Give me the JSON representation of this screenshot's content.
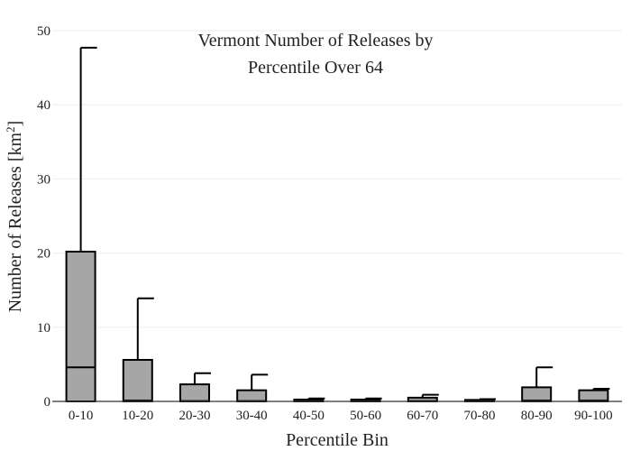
{
  "chart_data": {
    "type": "bar",
    "title_lines": [
      "Vermont Number of Releases by",
      "Percentile Over 64"
    ],
    "xlabel": "Percentile Bin",
    "ylabel_main": "Number of Releases  [km",
    "ylabel_sup": "2",
    "ylabel_end": "]",
    "ylim": [
      0,
      50
    ],
    "yticks": [
      "0",
      "10",
      "20",
      "30",
      "40",
      "50"
    ],
    "grid": true,
    "colors": {
      "box_fill": "#a6a6a6",
      "box_stroke": "#000000"
    },
    "categories": [
      "0-10",
      "10-20",
      "20-30",
      "30-40",
      "40-50",
      "50-60",
      "60-70",
      "70-80",
      "80-90",
      "90-100"
    ],
    "series": [
      {
        "low": [
          0,
          0,
          0,
          0,
          0,
          0,
          0,
          0,
          0,
          0
        ],
        "median": [
          4.6,
          0.1,
          0.05,
          0.05,
          0.02,
          0.02,
          0.05,
          0.02,
          0.1,
          0.1
        ],
        "high": [
          20.2,
          5.6,
          2.3,
          1.5,
          0.25,
          0.25,
          0.5,
          0.2,
          1.9,
          1.5
        ],
        "whisker": [
          47.7,
          13.9,
          3.8,
          3.6,
          0.4,
          0.4,
          0.9,
          0.3,
          4.6,
          1.7
        ]
      }
    ]
  }
}
